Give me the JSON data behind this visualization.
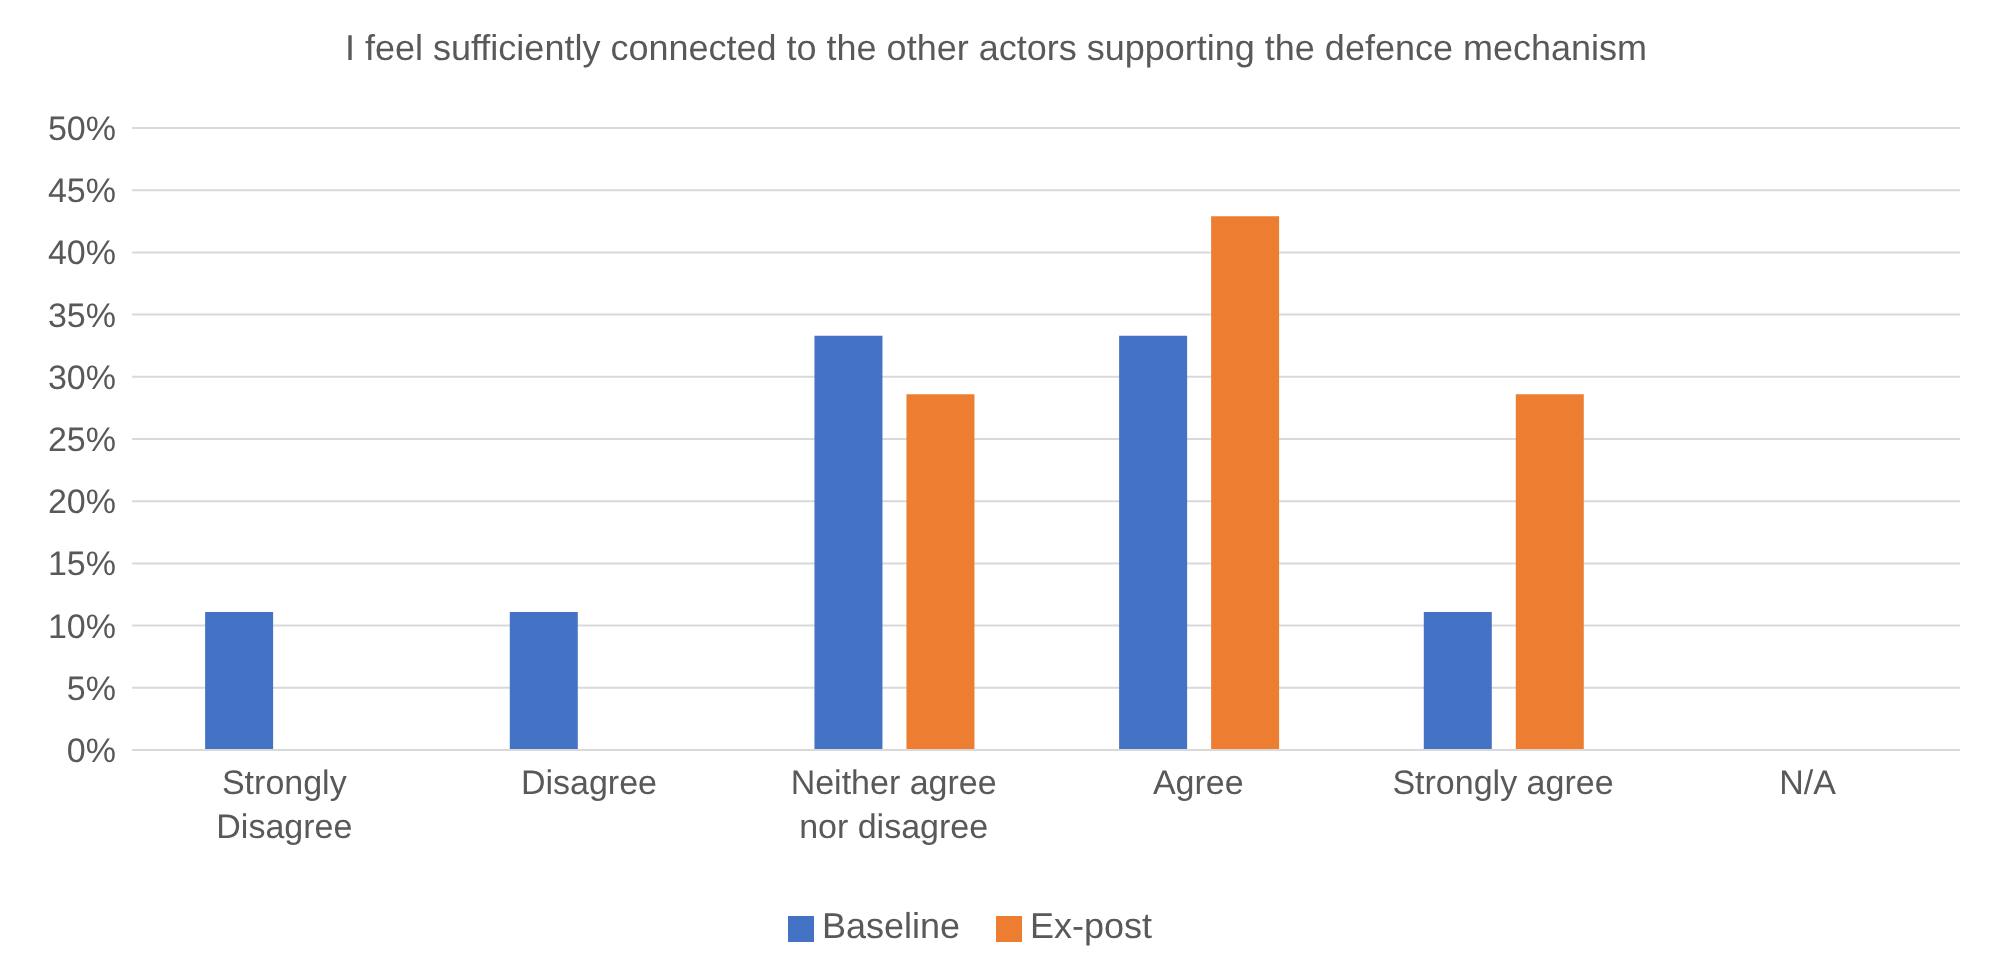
{
  "chart_data": {
    "type": "bar",
    "title": "I feel sufficiently connected to the other actors supporting the defence mechanism",
    "categories": [
      "Strongly Disagree",
      "Disagree",
      "Neither agree nor disagree",
      "Agree",
      "Strongly agree",
      "N/A"
    ],
    "series": [
      {
        "name": "Baseline",
        "color": "#4472c4",
        "values": [
          11.1,
          11.1,
          33.3,
          33.3,
          11.1,
          0
        ]
      },
      {
        "name": "Ex-post",
        "color": "#ed7d31",
        "values": [
          0,
          0,
          28.6,
          42.9,
          28.6,
          0
        ]
      }
    ],
    "ylim": [
      0,
      50
    ],
    "yticks": [
      {
        "value": 0,
        "label": "0%"
      },
      {
        "value": 5,
        "label": "5%"
      },
      {
        "value": 10,
        "label": "10%"
      },
      {
        "value": 15,
        "label": "15%"
      },
      {
        "value": 20,
        "label": "20%"
      },
      {
        "value": 25,
        "label": "25%"
      },
      {
        "value": 30,
        "label": "30%"
      },
      {
        "value": 35,
        "label": "35%"
      },
      {
        "value": 40,
        "label": "40%"
      },
      {
        "value": 45,
        "label": "45%"
      },
      {
        "value": 50,
        "label": "50%"
      }
    ],
    "grid": "y",
    "legend": "bottom"
  }
}
